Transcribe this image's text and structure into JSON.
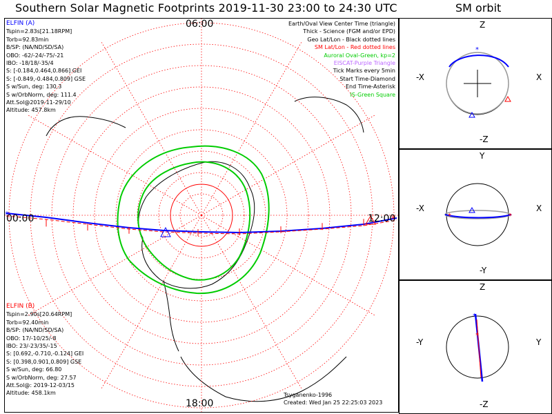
{
  "title": "Southern Solar Magnetic Footprints 2019-11-30 23:00 to 24:30 UTC",
  "orbit_title": "SM orbit",
  "clock_labels": {
    "top": "06:00",
    "bottom": "18:00",
    "left": "00:00",
    "right": "12:00"
  },
  "elfin_a": {
    "name": "ELFIN (A)",
    "color": "#0000ff",
    "lines": [
      "Tspin=2.83s[21.18RPM]",
      "Torb=92.83min",
      "B/SP: (NA/ND/SD/SA)",
      "OBO: -62/-24/-75/-21",
      "IBO: -18/18/-35/4",
      "S: [-0.184,0.464,0.866] GEI",
      "S: [-0.849,-0.484,0.809] GSE",
      "S w/Sun, deg: 130.3",
      "S w/OrbNorm, deg: 111.4",
      "Att.Sol@2019-11-29/10",
      "Altitude: 457.8km"
    ]
  },
  "elfin_b": {
    "name": "ELFIN (B)",
    "color": "#ff0000",
    "lines": [
      "Tspin=2.90s[20.64RPM]",
      "Torb=92.40min",
      "B/SP: (NA/ND/SD/SA)",
      "OBO: 17/-10/25/-8",
      "IBO: 23/-23/35/-15",
      "S: [0.692,-0.710,-0.124] GEI",
      "S: [0.398,0.901,0.809] GSE",
      "S w/Sun, deg: 66.80",
      "S w/OrbNorm, deg: 27.57",
      "Att.Sol@: 2019-12-03/15",
      "Altitude: 458.1km"
    ]
  },
  "legend": [
    {
      "text": "Earth/Oval View Center Time (triangle)",
      "color": "#000000"
    },
    {
      "text": "Thick - Science (FGM and/or EPD)",
      "color": "#000000"
    },
    {
      "text": "Geo Lat/Lon - Black dotted lines",
      "color": "#000000"
    },
    {
      "text": "SM Lat/Lon - Red dotted lines",
      "color": "#ff0000"
    },
    {
      "text": "Auroral Oval-Green, kp=2",
      "color": "#00cc00"
    },
    {
      "text": "EISCAT-Purple Triangle",
      "color": "#bb66ff"
    },
    {
      "text": "Tick Marks every 5min",
      "color": "#000000"
    },
    {
      "text": "Start Time-Diamond",
      "color": "#000000"
    },
    {
      "text": "End Time-Asterisk",
      "color": "#000000"
    },
    {
      "text": "IS-Green Square",
      "color": "#00cc00"
    }
  ],
  "footer": {
    "model": "Tsyganenko-1996",
    "created": "Created: Wed Jan 25 22:25:03 2023"
  },
  "orbit_panels": [
    {
      "top": "Z",
      "bottom": "-Z",
      "left": "-X",
      "right": "X"
    },
    {
      "top": "Y",
      "bottom": "-Y",
      "left": "-X",
      "right": "X"
    },
    {
      "top": "Z",
      "bottom": "-Z",
      "left": "-Y",
      "right": "Y"
    }
  ],
  "colors": {
    "elfin_a": "#0000ff",
    "elfin_b": "#ff0000",
    "oval": "#00cc00",
    "grid_sm": "#ff0000",
    "eiscat": "#bb66ff"
  },
  "chart_data": {
    "type": "scatter",
    "projection": "south polar (SM), MLT clock dial",
    "mlt_labels": [
      "00:00",
      "06:00",
      "12:00",
      "18:00"
    ],
    "series": [
      {
        "name": "ELFIN (A)",
        "color": "#0000ff"
      },
      {
        "name": "ELFIN (B)",
        "color": "#ff0000"
      }
    ],
    "auroral_oval_kp": 2,
    "tick_interval_min": 5
  }
}
